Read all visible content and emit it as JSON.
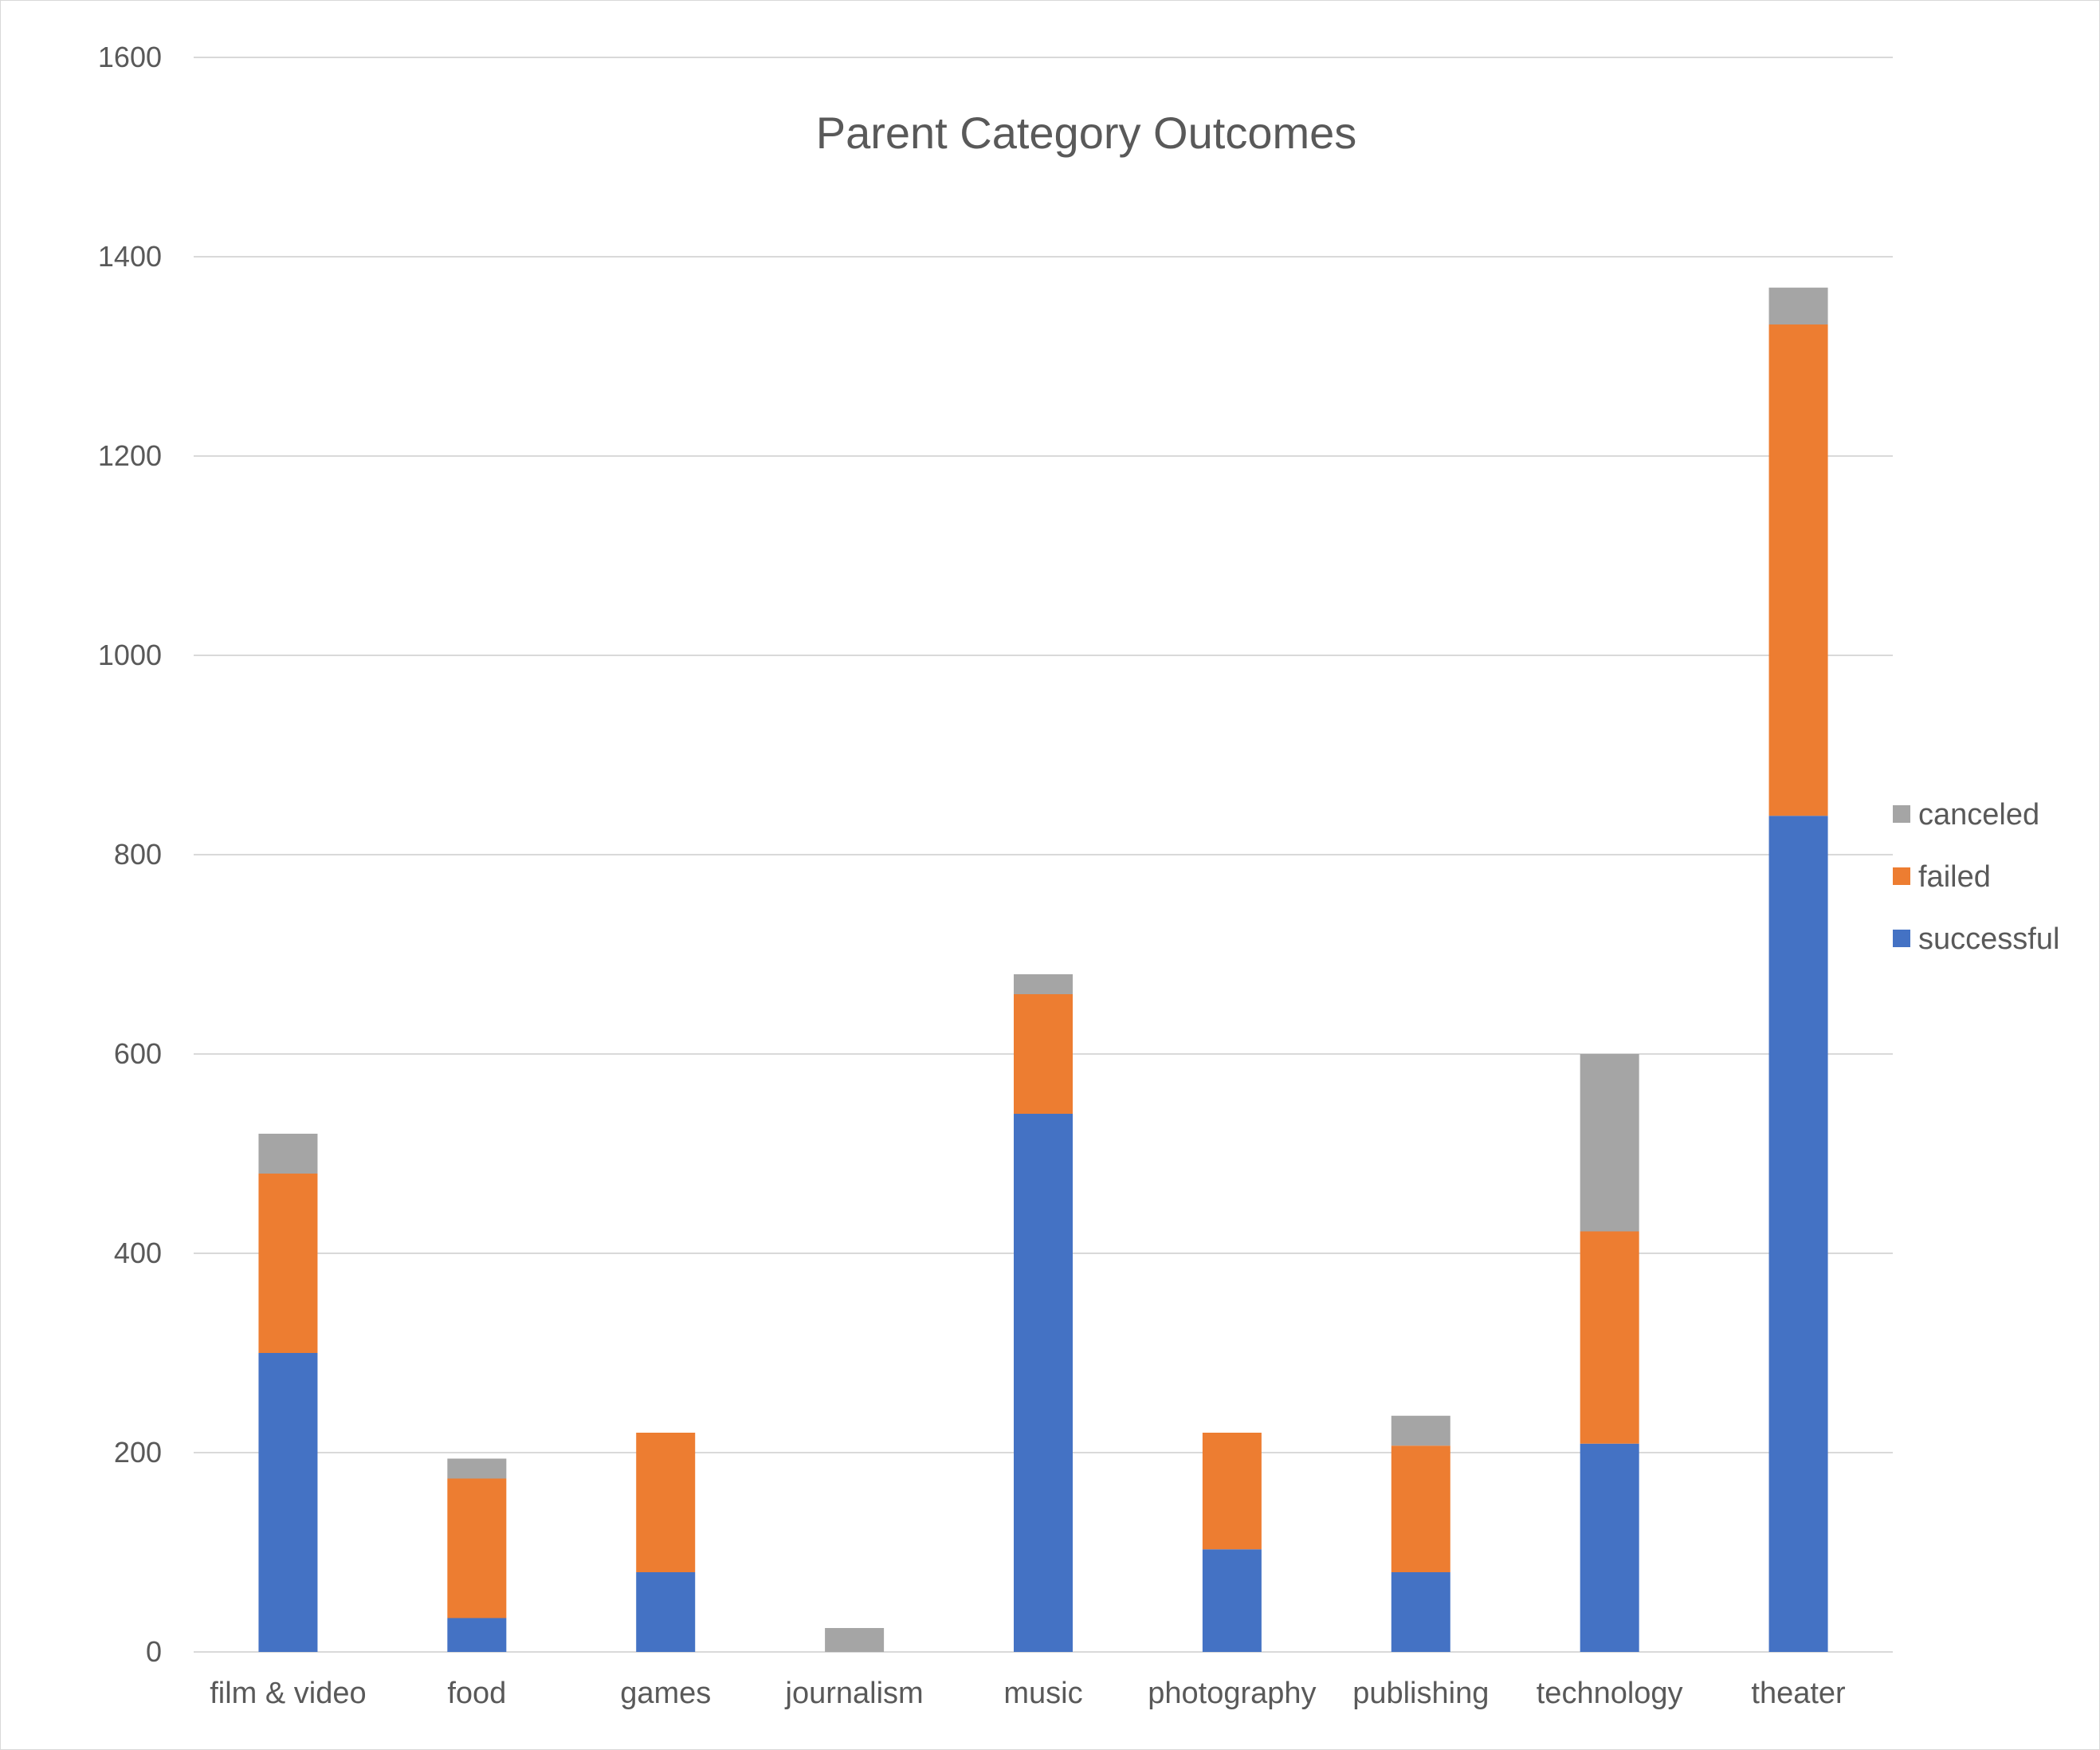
{
  "chart_data": {
    "type": "bar",
    "stacked": true,
    "title": "Parent Category Outcomes",
    "xlabel": "",
    "ylabel": "",
    "ylim": [
      0,
      1600
    ],
    "y_ticks": [
      0,
      200,
      400,
      600,
      800,
      1000,
      1200,
      1400,
      1600
    ],
    "grid": true,
    "legend_position": "right",
    "categories": [
      "film & video",
      "food",
      "games",
      "journalism",
      "music",
      "photography",
      "publishing",
      "technology",
      "theater"
    ],
    "series": [
      {
        "name": "successful",
        "color": "#4472C4",
        "values": [
          300,
          34,
          80,
          0,
          540,
          103,
          80,
          209,
          839
        ]
      },
      {
        "name": "failed",
        "color": "#ED7D31",
        "values": [
          180,
          140,
          140,
          0,
          120,
          117,
          127,
          213,
          493
        ]
      },
      {
        "name": "canceled",
        "color": "#A5A5A5",
        "values": [
          40,
          20,
          0,
          24,
          20,
          0,
          30,
          178,
          37
        ]
      }
    ],
    "legend_order": [
      "canceled",
      "failed",
      "successful"
    ]
  }
}
